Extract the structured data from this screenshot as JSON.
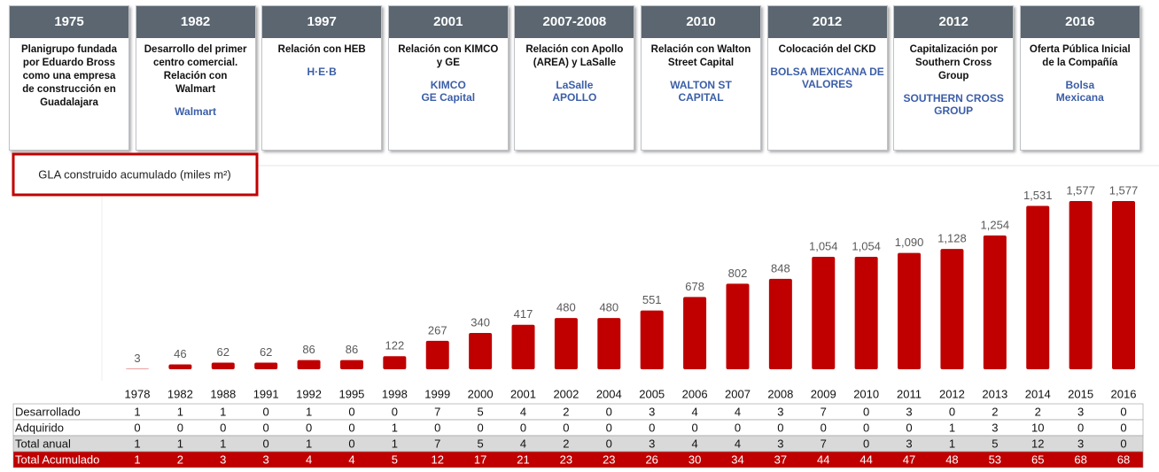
{
  "timeline": [
    {
      "year": "1975",
      "text": "Planigrupo fundada por Eduardo Bross como una empresa de construcción en Guadalajara",
      "logos": []
    },
    {
      "year": "1982",
      "text": "Desarrollo del primer centro comercial. Relación con Walmart",
      "logos": [
        "Walmart"
      ]
    },
    {
      "year": "1997",
      "text": "Relación con HEB",
      "logos": [
        "H·E·B"
      ]
    },
    {
      "year": "2001",
      "text": "Relación con KIMCO y GE",
      "logos": [
        "KIMCO",
        "GE Capital"
      ]
    },
    {
      "year": "2007-2008",
      "text": "Relación con Apollo (AREA) y LaSalle",
      "logos": [
        "LaSalle",
        "APOLLO"
      ]
    },
    {
      "year": "2010",
      "text": "Relación con Walton Street Capital",
      "logos": [
        "WALTON ST",
        "CAPITAL"
      ]
    },
    {
      "year": "2012",
      "text": "Colocación del CKD",
      "logos": [
        "BOLSA MEXICANA DE VALORES"
      ]
    },
    {
      "year": "2012",
      "text": "Capitalización por Southern Cross Group",
      "logos": [
        "SOUTHERN CROSS GROUP"
      ]
    },
    {
      "year": "2016",
      "text": "Oferta Pública Inicial de la Compañía",
      "logos": [
        "Bolsa",
        "Mexicana"
      ]
    }
  ],
  "chart_data": {
    "type": "bar",
    "title": "GLA construido acumulado (miles m²)",
    "color": "#c00000",
    "categories": [
      "1978",
      "1982",
      "1988",
      "1991",
      "1992",
      "1995",
      "1998",
      "1999",
      "2000",
      "2001",
      "2002",
      "2004",
      "2005",
      "2006",
      "2007",
      "2008",
      "2009",
      "2010",
      "2011",
      "2012",
      "2013",
      "2014",
      "2015",
      "2016"
    ],
    "values": [
      3,
      46,
      62,
      62,
      86,
      86,
      122,
      267,
      340,
      417,
      480,
      480,
      551,
      678,
      802,
      848,
      1054,
      1054,
      1090,
      1128,
      1254,
      1531,
      1577,
      1577
    ],
    "value_labels": [
      "3",
      "46",
      "62",
      "62",
      "86",
      "86",
      "122",
      "267",
      "340",
      "417",
      "480",
      "480",
      "551",
      "678",
      "802",
      "848",
      "1,054",
      "1,054",
      "1,090",
      "1,128",
      "1,254",
      "1,531",
      "1,577",
      "1,577"
    ]
  },
  "table": {
    "rows": [
      {
        "label": "Desarrollado",
        "values": [
          1,
          1,
          1,
          0,
          1,
          0,
          0,
          7,
          5,
          4,
          2,
          0,
          3,
          4,
          4,
          3,
          7,
          0,
          3,
          0,
          2,
          2,
          3,
          0
        ]
      },
      {
        "label": "Adquirido",
        "values": [
          0,
          0,
          0,
          0,
          0,
          0,
          1,
          0,
          0,
          0,
          0,
          0,
          0,
          0,
          0,
          0,
          0,
          0,
          0,
          1,
          3,
          10,
          0,
          0
        ]
      },
      {
        "label": "Total anual",
        "values": [
          1,
          1,
          1,
          0,
          1,
          0,
          1,
          7,
          5,
          4,
          2,
          0,
          3,
          4,
          4,
          3,
          7,
          0,
          3,
          1,
          5,
          12,
          3,
          0
        ]
      },
      {
        "label": "Total Acumulado",
        "values": [
          1,
          2,
          3,
          3,
          4,
          4,
          5,
          12,
          17,
          21,
          23,
          23,
          26,
          30,
          34,
          37,
          44,
          44,
          47,
          48,
          53,
          65,
          68,
          68
        ]
      }
    ]
  }
}
